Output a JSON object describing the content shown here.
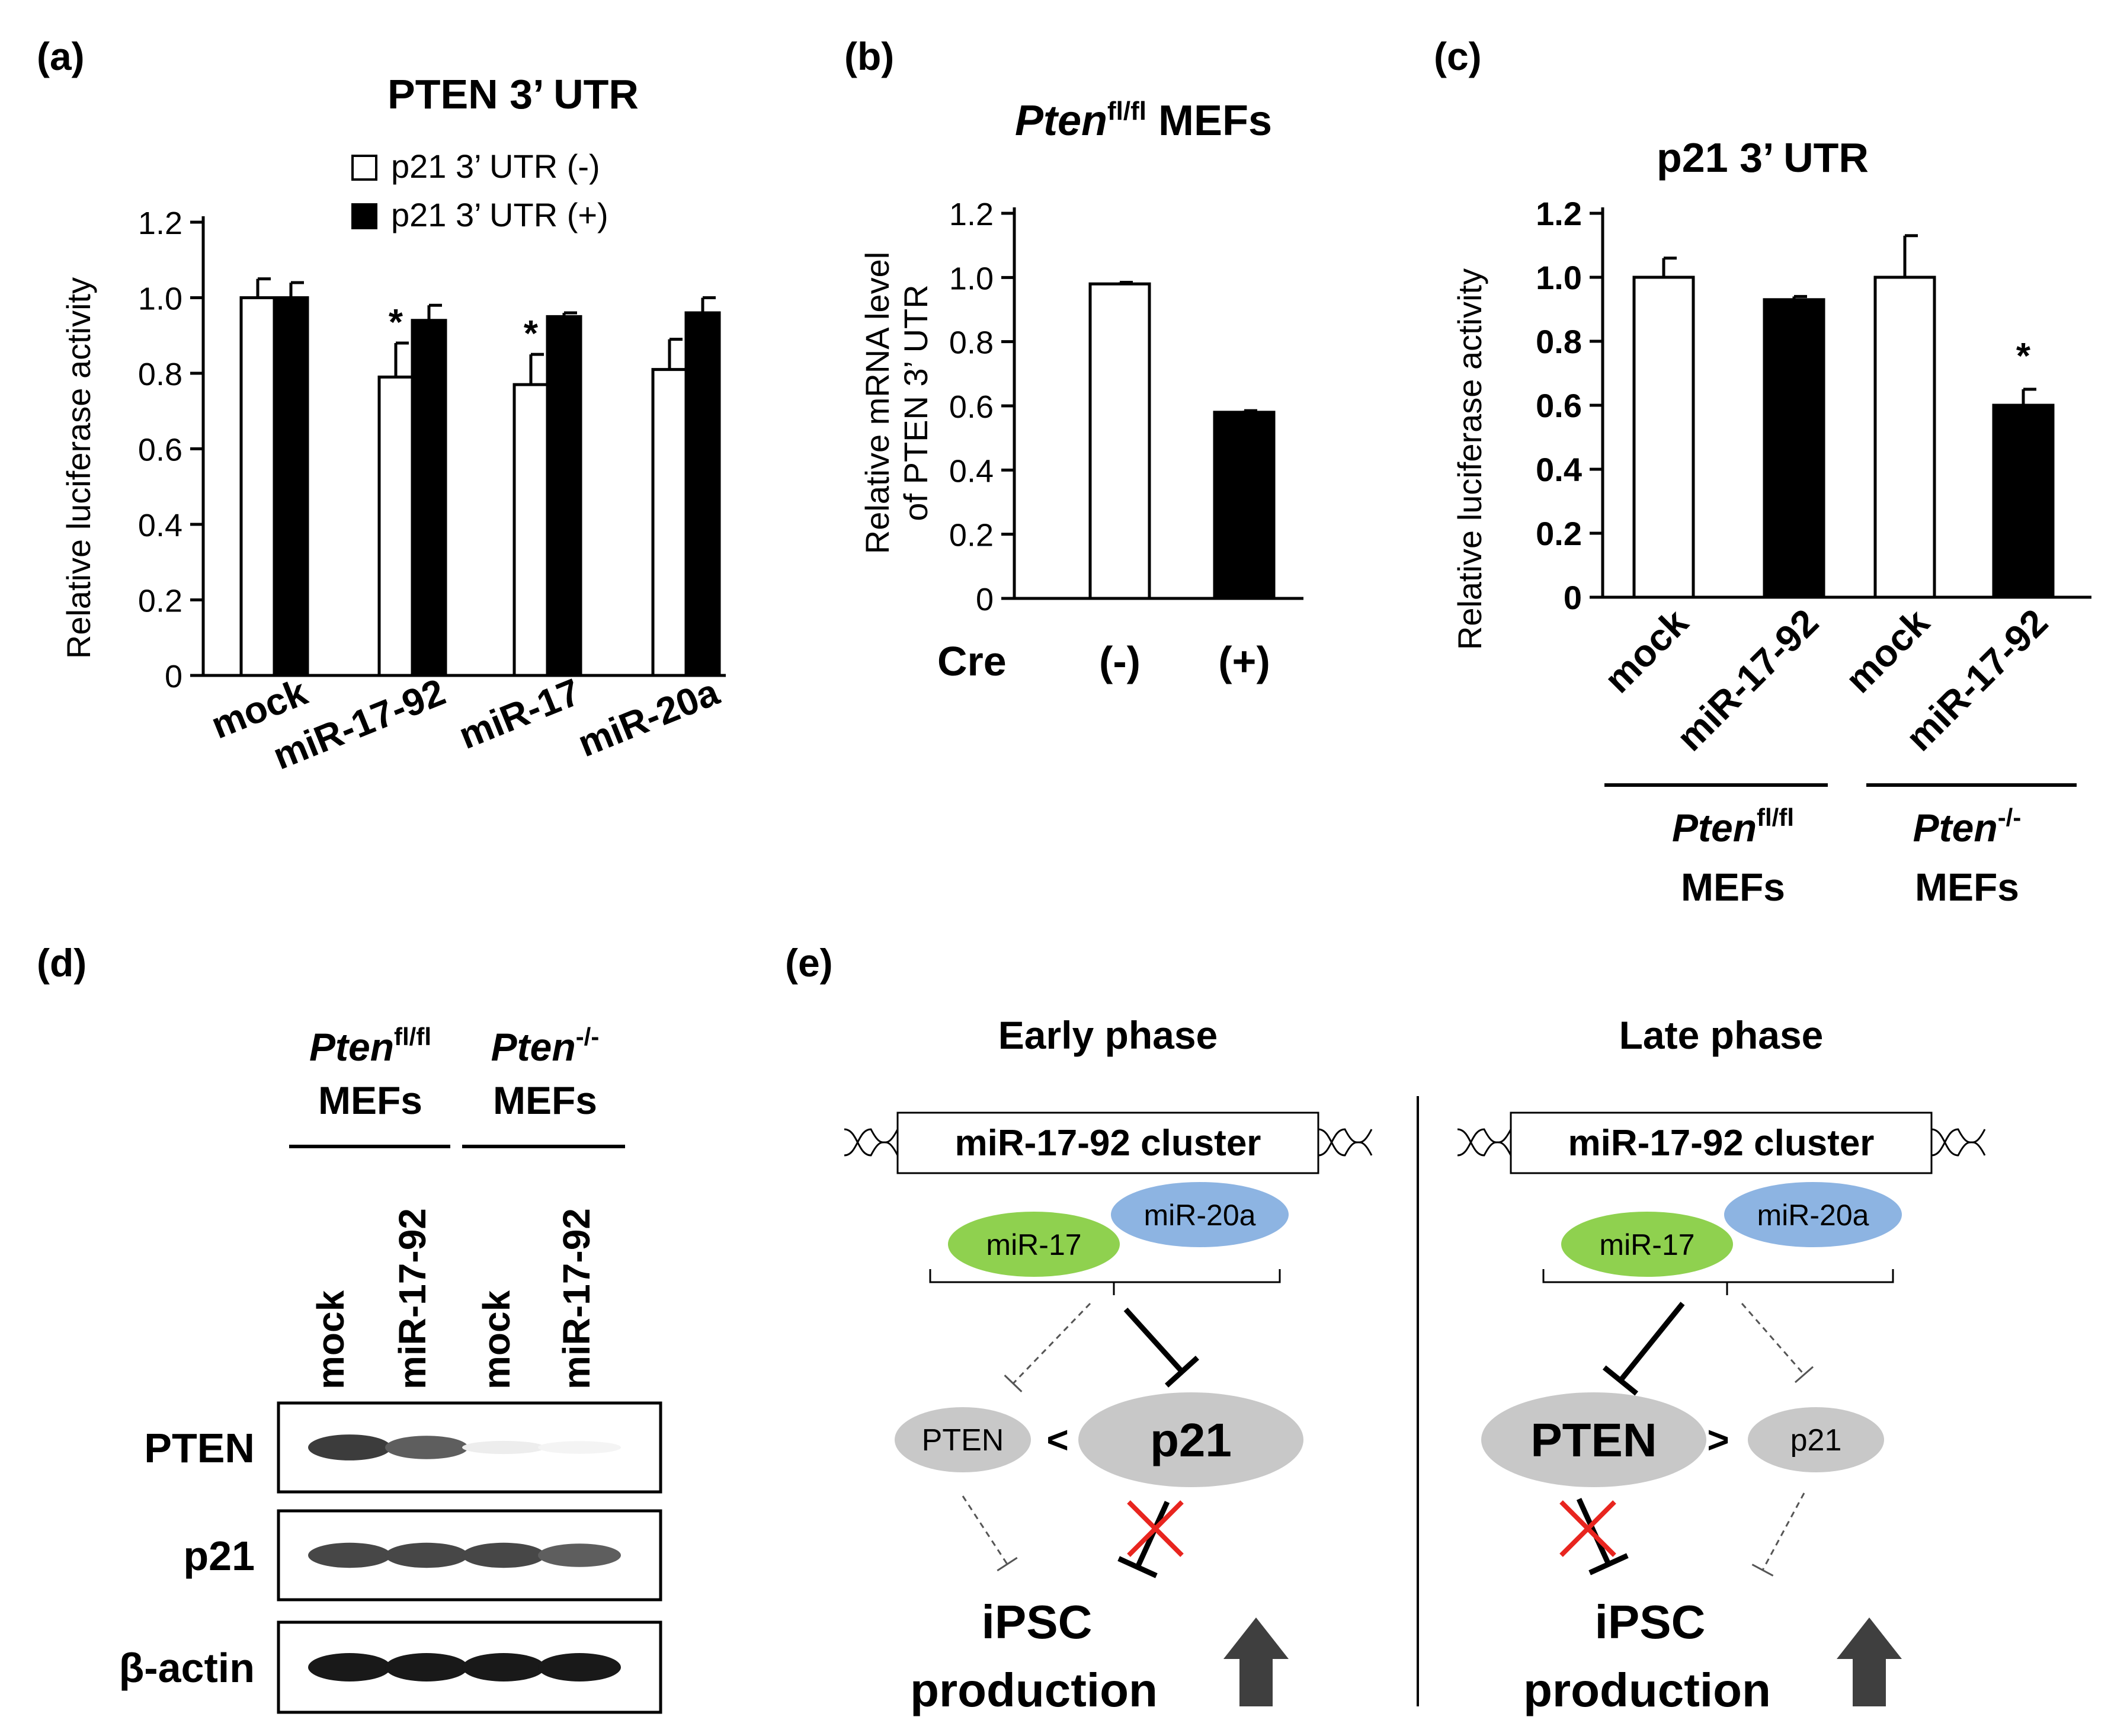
{
  "panel_letters": {
    "a": "(a)",
    "b": "(b)",
    "c": "(c)",
    "d": "(d)",
    "e": "(e)"
  },
  "chart_data": [
    {
      "panel": "a",
      "type": "bar",
      "title": "PTEN 3’ UTR",
      "ylabel": "Relative luciferase activity",
      "xlabel": "",
      "ylim": [
        0,
        1.2
      ],
      "yticks": [
        "0",
        "0.2",
        "0.4",
        "0.6",
        "0.8",
        "1.0",
        "1.2"
      ],
      "ytick_values": [
        0,
        0.2,
        0.4,
        0.6,
        0.8,
        1.0,
        1.2
      ],
      "categories": [
        "mock",
        "miR-17-92",
        "miR-17",
        "miR-20a"
      ],
      "legend_position": "top-right",
      "series": [
        {
          "name": "p21 3’ UTR (-)",
          "color": "#ffffff",
          "values": [
            1.0,
            0.79,
            0.77,
            0.81
          ],
          "errors": [
            0.05,
            0.09,
            0.08,
            0.08
          ],
          "significance": [
            "",
            "*",
            "*",
            ""
          ]
        },
        {
          "name": "p21 3’ UTR (+)",
          "color": "#000000",
          "values": [
            1.0,
            0.94,
            0.95,
            0.96
          ],
          "errors": [
            0.04,
            0.04,
            0.01,
            0.04
          ],
          "significance": [
            "",
            "",
            "",
            ""
          ]
        }
      ]
    },
    {
      "panel": "b",
      "type": "bar",
      "title_italic": "Pten",
      "title_sup": "fl/fl",
      "title_rest": " MEFs",
      "ylabel_line1": "Relative  mRNA level",
      "ylabel_line2": "of  PTEN 3’ UTR",
      "xlabel": "Cre",
      "ylim": [
        0,
        1.2
      ],
      "yticks": [
        "0",
        "0.2",
        "0.4",
        "0.6",
        "0.8",
        "1.0",
        "1.2"
      ],
      "ytick_values": [
        0,
        0.2,
        0.4,
        0.6,
        0.8,
        1.0,
        1.2
      ],
      "categories": [
        "(-)",
        "(+)"
      ],
      "values": [
        0.98,
        0.58
      ],
      "errors": [
        0.005,
        0.005
      ],
      "colors": [
        "#ffffff",
        "#000000"
      ]
    },
    {
      "panel": "c",
      "type": "bar",
      "title": "p21 3’ UTR",
      "ylabel": "Relative luciferase activity",
      "ylim": [
        0,
        1.2
      ],
      "yticks": [
        "0",
        "0.2",
        "0.4",
        "0.6",
        "0.8",
        "1.0",
        "1.2"
      ],
      "ytick_values": [
        0,
        0.2,
        0.4,
        0.6,
        0.8,
        1.0,
        1.2
      ],
      "categories": [
        "mock",
        "miR-17-92",
        "mock",
        "miR-17-92"
      ],
      "values": [
        1.0,
        0.93,
        1.0,
        0.6
      ],
      "errors": [
        0.06,
        0.01,
        0.13,
        0.05
      ],
      "colors": [
        "#ffffff",
        "#000000",
        "#ffffff",
        "#000000"
      ],
      "significance": [
        "",
        "",
        "",
        "*"
      ],
      "groups": [
        {
          "italic": "Pten",
          "sup": "fl/fl",
          "line2": "MEFs"
        },
        {
          "italic": "Pten",
          "sup": "-/-",
          "line2": "MEFs"
        }
      ]
    }
  ],
  "blot": {
    "groups": [
      {
        "italic": "Pten",
        "sup": "fl/fl",
        "line2": "MEFs"
      },
      {
        "italic": "Pten",
        "sup": "-/-",
        "line2": "MEFs"
      }
    ],
    "lanes": [
      "mock",
      "miR-17-92",
      "mock",
      "miR-17-92"
    ],
    "rows": [
      {
        "label": "PTEN",
        "intensity": [
          0.85,
          0.7,
          0.08,
          0.05
        ]
      },
      {
        "label": "p21",
        "intensity": [
          0.8,
          0.8,
          0.8,
          0.7
        ]
      },
      {
        "label": "β-actin",
        "intensity": [
          1.0,
          1.0,
          1.0,
          1.0
        ]
      }
    ]
  },
  "diagram": {
    "left": {
      "title": "Early phase",
      "cluster": "miR-17-92 cluster",
      "mir17": "miR-17",
      "mir20a": "miR-20a",
      "pten": "PTEN",
      "p21": "p21",
      "compare": "<",
      "output1": "iPSC",
      "output2": "production"
    },
    "right": {
      "title": "Late phase",
      "cluster": "miR-17-92 cluster",
      "mir17": "miR-17",
      "mir20a": "miR-20a",
      "pten": "PTEN",
      "p21": "p21",
      "compare": ">",
      "output1": "iPSC",
      "output2": "production"
    },
    "colors": {
      "mir17": "#8fd14f",
      "mir20a": "#8db4e2",
      "node": "#c8c8c8",
      "cross": "#e8251f",
      "arrow": "#3f3f3f"
    }
  }
}
